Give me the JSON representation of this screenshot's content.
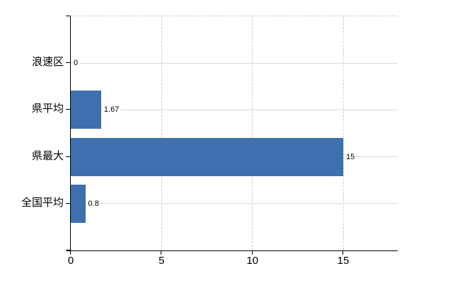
{
  "chart_data": {
    "type": "bar",
    "orientation": "horizontal",
    "title": "",
    "xlabel": "",
    "ylabel": "",
    "categories": [
      "浪速区",
      "県平均",
      "県最大",
      "全国平均"
    ],
    "values": [
      0,
      1.67,
      15,
      0.8
    ],
    "value_labels": [
      "0",
      "1.67",
      "15",
      "0.8"
    ],
    "xticks": [
      0,
      5,
      10,
      15
    ],
    "xtick_labels": [
      "0",
      "5",
      "10",
      "15"
    ],
    "xlim": [
      0,
      18
    ],
    "grid": true,
    "legend": false,
    "colors": {
      "bar": "#3e6fae",
      "h_gridline": "#d6ded6",
      "v_gridline": "#cccccc",
      "axis": "#000000",
      "text": "#000000",
      "background": "#ffffff"
    }
  }
}
